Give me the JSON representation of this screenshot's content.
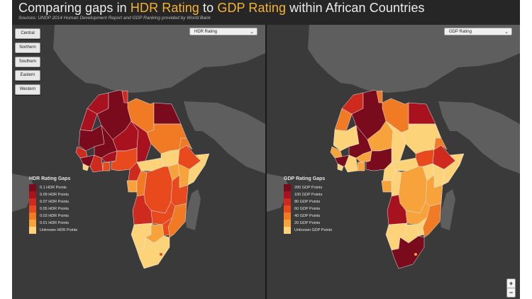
{
  "title": {
    "prefix": "Comparing gaps in ",
    "hdr": "HDR Rating",
    "middle": " to ",
    "gdp": "GDP Rating",
    "suffix": " within African Countries"
  },
  "subtitle": "Sources: UNDP 2014 Human Development Report and GDP Ranking provided by World Bank",
  "region_buttons": [
    "Central",
    "Northern",
    "Southern",
    "Eastern",
    "Western"
  ],
  "left_panel": {
    "dropdown_value": "HDR Rating",
    "legend_title": "HDR Rating Gaps",
    "legend_items": [
      {
        "label": "0.1 HDR Points",
        "color": "#7a0b1d"
      },
      {
        "label": "0.09 HDR Points",
        "color": "#a8121f"
      },
      {
        "label": "0.07 HDR Points",
        "color": "#cf2a1e"
      },
      {
        "label": "0.05 HDR Points",
        "color": "#e84a1e"
      },
      {
        "label": "0.03 HDR Points",
        "color": "#f17a25"
      },
      {
        "label": "0.01 HDR Points",
        "color": "#f7a23a"
      },
      {
        "label": "Unknown HDR Points",
        "color": "#fdd37a"
      }
    ]
  },
  "right_panel": {
    "dropdown_value": "GDP Rating",
    "legend_title": "GDP Rating Gaps",
    "legend_items": [
      {
        "label": "200 GDP Points",
        "color": "#7a0b1d"
      },
      {
        "label": "100 GDP Points",
        "color": "#a8121f"
      },
      {
        "label": "80 GDP Points",
        "color": "#cf2a1e"
      },
      {
        "label": "60 GDP Points",
        "color": "#e84a1e"
      },
      {
        "label": "40 GDP Points",
        "color": "#f17a25"
      },
      {
        "label": "20 GDP Points",
        "color": "#f7a23a"
      },
      {
        "label": "Unknown GDP Points",
        "color": "#fdd37a"
      }
    ]
  },
  "zoom": {
    "in": "+",
    "out": "−"
  },
  "colors": {
    "background": "#3a3a3a",
    "land_other": "#5e5e5e",
    "accent": "#f5b335"
  }
}
